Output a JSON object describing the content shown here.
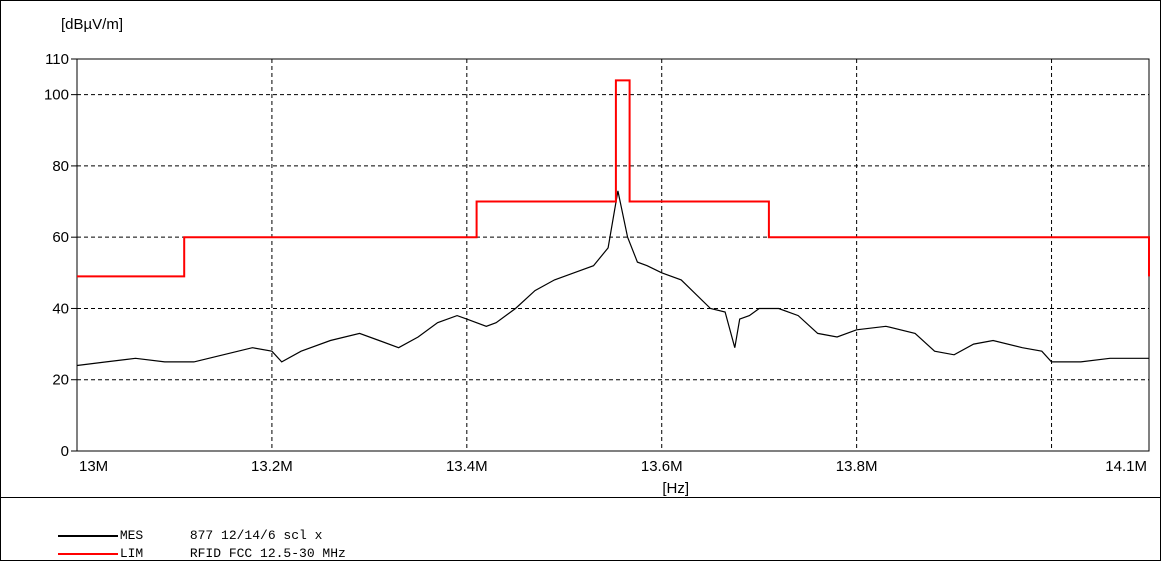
{
  "chart_data": {
    "type": "line",
    "ylabel": "[dBµV/m]",
    "xlabel": "[Hz]",
    "xlim": [
      13.0,
      14.1
    ],
    "ylim": [
      0,
      110
    ],
    "x_ticks": [
      {
        "value": 13.0,
        "label": "13M"
      },
      {
        "value": 13.2,
        "label": "13.2M"
      },
      {
        "value": 13.4,
        "label": "13.4M"
      },
      {
        "value": 13.6,
        "label": "13.6M"
      },
      {
        "value": 13.8,
        "label": "13.8M"
      },
      {
        "value": 14.1,
        "label": "14.1M"
      }
    ],
    "x_grid": [
      13.2,
      13.4,
      13.6,
      13.8,
      14.0
    ],
    "y_ticks": [
      0,
      20,
      40,
      60,
      80,
      100,
      110
    ],
    "y_grid": [
      20,
      40,
      60,
      80,
      100
    ],
    "grid": true,
    "legend_position": "bottom",
    "series": [
      {
        "name": "MES",
        "label": "877 12/14/6 scl x",
        "color": "#000000",
        "x": [
          13.0,
          13.03,
          13.06,
          13.09,
          13.12,
          13.15,
          13.18,
          13.2,
          13.21,
          13.23,
          13.26,
          13.29,
          13.31,
          13.33,
          13.35,
          13.37,
          13.39,
          13.4,
          13.42,
          13.43,
          13.45,
          13.47,
          13.49,
          13.51,
          13.53,
          13.545,
          13.555,
          13.565,
          13.575,
          13.585,
          13.6,
          13.62,
          13.65,
          13.665,
          13.675,
          13.68,
          13.69,
          13.7,
          13.72,
          13.74,
          13.76,
          13.78,
          13.8,
          13.83,
          13.86,
          13.88,
          13.9,
          13.92,
          13.94,
          13.97,
          13.99,
          14.0,
          14.03,
          14.06,
          14.1
        ],
        "values": [
          24,
          25,
          26,
          25,
          25,
          27,
          29,
          28,
          25,
          28,
          31,
          33,
          31,
          29,
          32,
          36,
          38,
          37,
          35,
          36,
          40,
          45,
          48,
          50,
          52,
          57,
          73,
          60,
          53,
          52,
          50,
          48,
          40,
          39,
          29,
          37,
          38,
          40,
          40,
          38,
          33,
          32,
          34,
          35,
          33,
          28,
          27,
          30,
          31,
          29,
          28,
          25,
          25,
          26,
          26
        ]
      },
      {
        "name": "LIM",
        "label": "RFID FCC 12.5-30 MHz",
        "color": "#ff0000",
        "x": [
          13.0,
          13.11,
          13.11,
          13.41,
          13.41,
          13.553,
          13.553,
          13.567,
          13.567,
          13.71,
          13.71,
          14.11,
          14.11,
          14.1
        ],
        "values": [
          49,
          49,
          60,
          60,
          70,
          70,
          104,
          104,
          70,
          70,
          60,
          60,
          49,
          49
        ]
      }
    ]
  },
  "legend": [
    {
      "name": "MES",
      "label": "877 12/14/6 scl x",
      "color": "#000000"
    },
    {
      "name": "LIM",
      "label": "RFID FCC 12.5-30 MHz",
      "color": "#ff0000"
    }
  ]
}
